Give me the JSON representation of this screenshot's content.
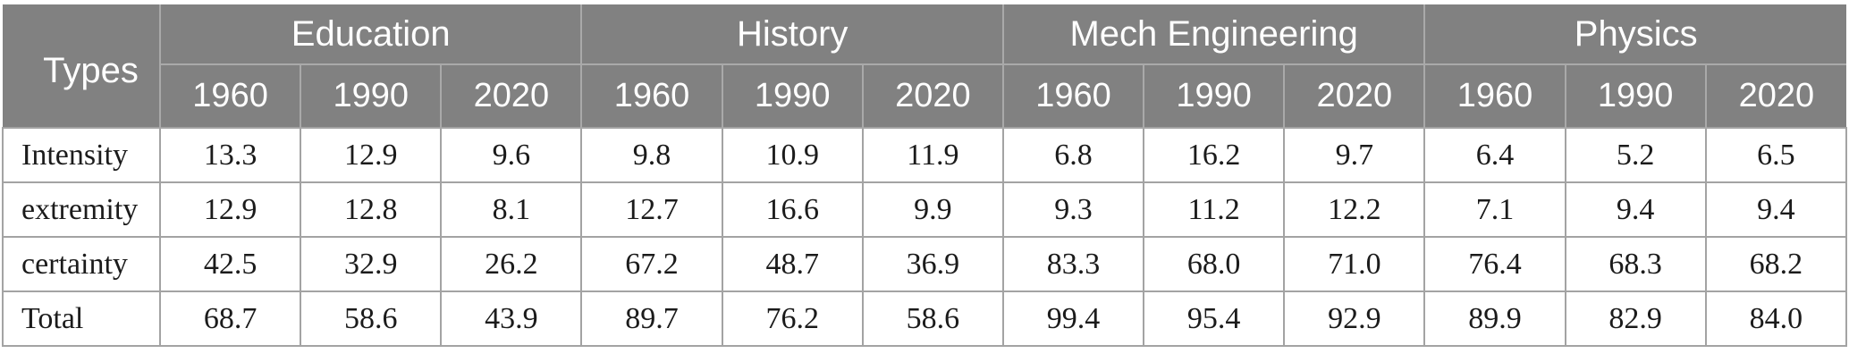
{
  "table": {
    "corner_label": "Types",
    "groups": [
      {
        "label": "Education",
        "years": [
          "1960",
          "1990",
          "2020"
        ]
      },
      {
        "label": "History",
        "years": [
          "1960",
          "1990",
          "2020"
        ]
      },
      {
        "label": "Mech Engineering",
        "years": [
          "1960",
          "1990",
          "2020"
        ]
      },
      {
        "label": "Physics",
        "years": [
          "1960",
          "1990",
          "2020"
        ]
      }
    ],
    "rows": [
      {
        "label": "Intensity",
        "values": [
          "13.3",
          "12.9",
          "9.6",
          "9.8",
          "10.9",
          "11.9",
          "6.8",
          "16.2",
          "9.7",
          "6.4",
          "5.2",
          "6.5"
        ]
      },
      {
        "label": "extremity",
        "values": [
          "12.9",
          "12.8",
          "8.1",
          "12.7",
          "16.6",
          "9.9",
          "9.3",
          "11.2",
          "12.2",
          "7.1",
          "9.4",
          "9.4"
        ]
      },
      {
        "label": "certainty",
        "values": [
          "42.5",
          "32.9",
          "26.2",
          "67.2",
          "48.7",
          "36.9",
          "83.3",
          "68.0",
          "71.0",
          "76.4",
          "68.3",
          "68.2"
        ]
      },
      {
        "label": "Total",
        "values": [
          "68.7",
          "58.6",
          "43.9",
          "89.7",
          "76.2",
          "58.6",
          "99.4",
          "95.4",
          "92.9",
          "89.9",
          "82.9",
          "84.0"
        ]
      }
    ]
  },
  "colors": {
    "header_background": "#818181",
    "header_text": "#ffffff",
    "header_divider": "#a9a9a9",
    "body_border": "#a3a3a3",
    "body_text": "#1b1b1b",
    "page_background": "#ffffff"
  },
  "chart_data": {
    "type": "table",
    "row_header_label": "Types",
    "column_groups": [
      "Education",
      "History",
      "Mech Engineering",
      "Physics"
    ],
    "sub_columns_per_group": [
      "1960",
      "1990",
      "2020"
    ],
    "row_labels": [
      "Intensity",
      "extremity",
      "certainty",
      "Total"
    ],
    "rows": [
      {
        "type": "Intensity",
        "Education": [
          13.3,
          12.9,
          9.6
        ],
        "History": [
          9.8,
          10.9,
          11.9
        ],
        "Mech Engineering": [
          6.8,
          16.2,
          9.7
        ],
        "Physics": [
          6.4,
          5.2,
          6.5
        ]
      },
      {
        "type": "extremity",
        "Education": [
          12.9,
          12.8,
          8.1
        ],
        "History": [
          12.7,
          16.6,
          9.9
        ],
        "Mech Engineering": [
          9.3,
          11.2,
          12.2
        ],
        "Physics": [
          7.1,
          9.4,
          9.4
        ]
      },
      {
        "type": "certainty",
        "Education": [
          42.5,
          32.9,
          26.2
        ],
        "History": [
          67.2,
          48.7,
          36.9
        ],
        "Mech Engineering": [
          83.3,
          68.0,
          71.0
        ],
        "Physics": [
          76.4,
          68.3,
          68.2
        ]
      },
      {
        "type": "Total",
        "Education": [
          68.7,
          58.6,
          43.9
        ],
        "History": [
          89.7,
          76.2,
          58.6
        ],
        "Mech Engineering": [
          99.4,
          95.4,
          92.9
        ],
        "Physics": [
          89.9,
          82.9,
          84.0
        ]
      }
    ]
  }
}
